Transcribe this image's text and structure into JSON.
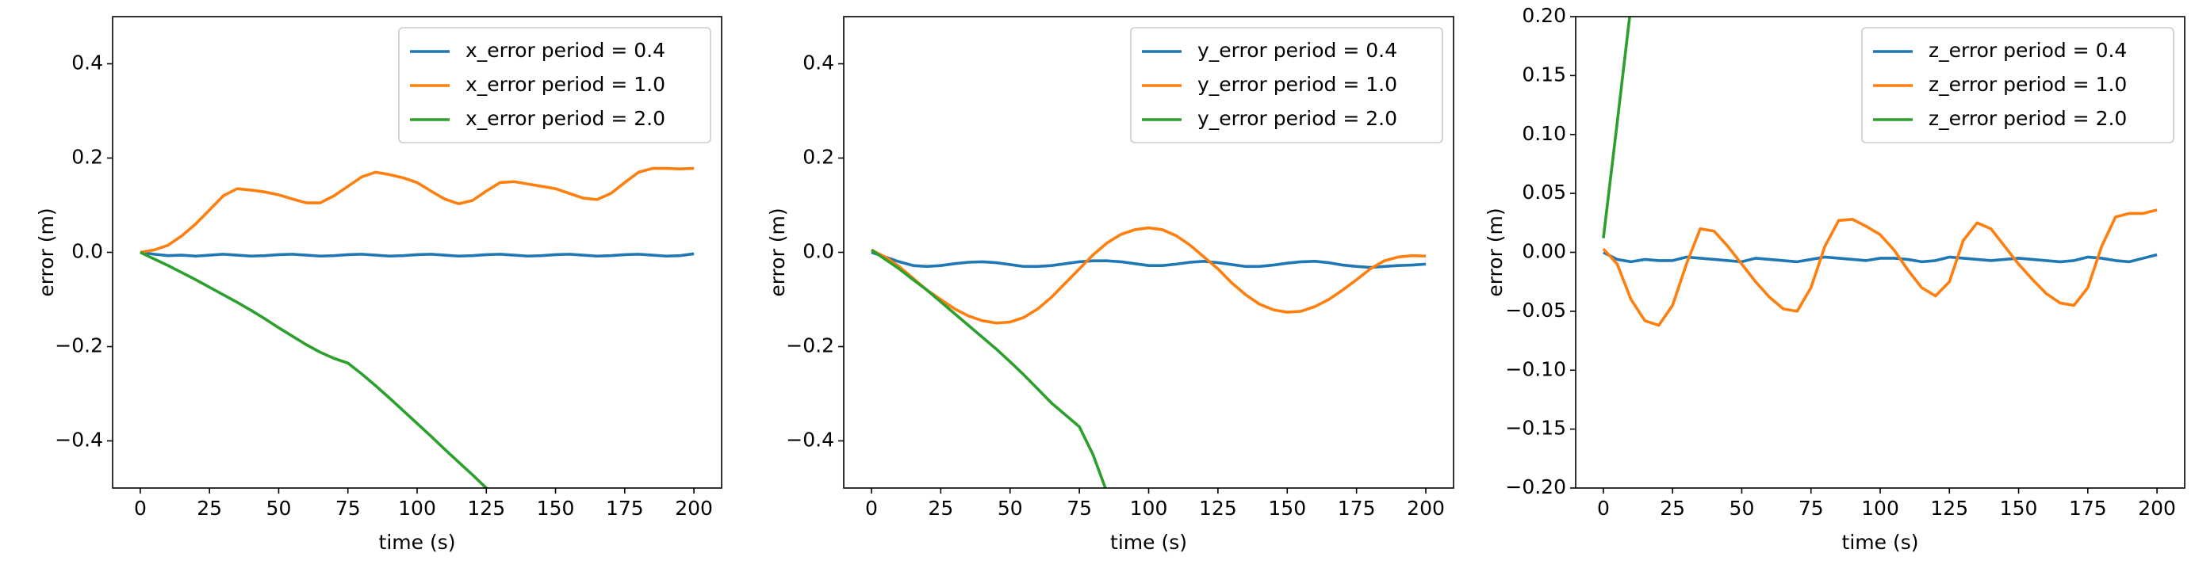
{
  "chart_data": [
    {
      "type": "line",
      "xlabel": "time (s)",
      "ylabel": "error (m)",
      "legend": "upper right",
      "xlim": [
        -10,
        210
      ],
      "ylim": [
        -0.5,
        0.5
      ],
      "xticks": [
        0,
        25,
        50,
        75,
        100,
        125,
        150,
        175,
        200
      ],
      "yticks": [
        {
          "value": -0.4,
          "label": "−0.4"
        },
        {
          "value": -0.2,
          "label": "−0.2"
        },
        {
          "value": 0.0,
          "label": "0.0"
        },
        0.2,
        0.4
      ],
      "x": [
        0,
        5,
        10,
        15,
        20,
        25,
        30,
        35,
        40,
        45,
        50,
        55,
        60,
        65,
        70,
        75,
        80,
        85,
        90,
        95,
        100,
        105,
        110,
        115,
        120,
        125,
        130,
        135,
        140,
        145,
        150,
        155,
        160,
        165,
        170,
        175,
        180,
        185,
        190,
        195,
        200
      ],
      "series": [
        {
          "name": "x_error  period = 0.4",
          "color": "#1f77b4",
          "values": [
            0,
            -0.004,
            -0.007,
            -0.006,
            -0.008,
            -0.006,
            -0.004,
            -0.006,
            -0.008,
            -0.007,
            -0.005,
            -0.004,
            -0.006,
            -0.008,
            -0.007,
            -0.005,
            -0.004,
            -0.006,
            -0.008,
            -0.007,
            -0.005,
            -0.004,
            -0.006,
            -0.008,
            -0.007,
            -0.005,
            -0.004,
            -0.006,
            -0.008,
            -0.007,
            -0.005,
            -0.004,
            -0.006,
            -0.008,
            -0.007,
            -0.005,
            -0.004,
            -0.006,
            -0.008,
            -0.007,
            -0.003
          ]
        },
        {
          "name": "x_error  period = 1.0",
          "color": "#ff7f0e",
          "values": [
            0,
            0.005,
            0.015,
            0.035,
            0.06,
            0.09,
            0.12,
            0.135,
            0.132,
            0.128,
            0.122,
            0.113,
            0.105,
            0.105,
            0.12,
            0.14,
            0.16,
            0.17,
            0.165,
            0.158,
            0.148,
            0.13,
            0.113,
            0.103,
            0.11,
            0.13,
            0.148,
            0.15,
            0.145,
            0.14,
            0.135,
            0.125,
            0.115,
            0.112,
            0.125,
            0.148,
            0.17,
            0.178,
            0.178,
            0.177,
            0.178
          ]
        },
        {
          "name": "x_error  period = 2.0",
          "color": "#2ca02c",
          "values": [
            0,
            -0.014,
            -0.028,
            -0.043,
            -0.058,
            -0.074,
            -0.09,
            -0.106,
            -0.123,
            -0.141,
            -0.16,
            -0.178,
            -0.196,
            -0.212,
            -0.225,
            -0.235,
            -0.258,
            -0.283,
            -0.309,
            -0.336,
            -0.363,
            -0.39,
            -0.418,
            -0.445,
            -0.472,
            -0.5,
            -0.53,
            null,
            null,
            null,
            null,
            null,
            null,
            null,
            null,
            null,
            null,
            null,
            null,
            null,
            null
          ]
        }
      ]
    },
    {
      "type": "line",
      "xlabel": "time (s)",
      "ylabel": "error (m)",
      "legend": "upper right",
      "xlim": [
        -10,
        210
      ],
      "ylim": [
        -0.5,
        0.5
      ],
      "xticks": [
        0,
        25,
        50,
        75,
        100,
        125,
        150,
        175,
        200
      ],
      "yticks": [
        {
          "value": -0.4,
          "label": "−0.4"
        },
        {
          "value": -0.2,
          "label": "−0.2"
        },
        {
          "value": 0.0,
          "label": "0.0"
        },
        0.2,
        0.4
      ],
      "x": [
        0,
        5,
        10,
        15,
        20,
        25,
        30,
        35,
        40,
        45,
        50,
        55,
        60,
        65,
        70,
        75,
        80,
        85,
        90,
        95,
        100,
        105,
        110,
        115,
        120,
        125,
        130,
        135,
        140,
        145,
        150,
        155,
        160,
        165,
        170,
        175,
        180,
        185,
        190,
        195,
        200
      ],
      "series": [
        {
          "name": "y_error  period = 0.4",
          "color": "#1f77b4",
          "values": [
            0,
            -0.01,
            -0.02,
            -0.028,
            -0.03,
            -0.028,
            -0.024,
            -0.021,
            -0.02,
            -0.022,
            -0.026,
            -0.03,
            -0.03,
            -0.028,
            -0.024,
            -0.02,
            -0.018,
            -0.018,
            -0.02,
            -0.024,
            -0.028,
            -0.028,
            -0.025,
            -0.021,
            -0.019,
            -0.022,
            -0.026,
            -0.03,
            -0.03,
            -0.027,
            -0.023,
            -0.02,
            -0.019,
            -0.022,
            -0.027,
            -0.03,
            -0.032,
            -0.03,
            -0.028,
            -0.027,
            -0.025
          ]
        },
        {
          "name": "y_error  period = 1.0",
          "color": "#ff7f0e",
          "values": [
            0.005,
            -0.01,
            -0.03,
            -0.055,
            -0.08,
            -0.1,
            -0.12,
            -0.135,
            -0.145,
            -0.15,
            -0.148,
            -0.138,
            -0.12,
            -0.095,
            -0.065,
            -0.035,
            -0.005,
            0.02,
            0.038,
            0.048,
            0.052,
            0.048,
            0.035,
            0.015,
            -0.01,
            -0.035,
            -0.065,
            -0.09,
            -0.11,
            -0.122,
            -0.127,
            -0.125,
            -0.115,
            -0.1,
            -0.08,
            -0.058,
            -0.035,
            -0.018,
            -0.01,
            -0.007,
            -0.008
          ]
        },
        {
          "name": "y_error  period = 2.0",
          "color": "#2ca02c",
          "values": [
            0.005,
            -0.015,
            -0.035,
            -0.058,
            -0.08,
            -0.105,
            -0.13,
            -0.155,
            -0.18,
            -0.205,
            -0.232,
            -0.26,
            -0.29,
            -0.32,
            -0.345,
            -0.37,
            -0.43,
            -0.51,
            null,
            null,
            null,
            null,
            null,
            null,
            null,
            null,
            null,
            null,
            null,
            null,
            null,
            null,
            null,
            null,
            null,
            null,
            null,
            null,
            null,
            null,
            null
          ]
        }
      ]
    },
    {
      "type": "line",
      "xlabel": "time (s)",
      "ylabel": "error (m)",
      "legend": "upper right",
      "xlim": [
        -10,
        210
      ],
      "ylim": [
        -0.2,
        0.2
      ],
      "xticks": [
        0,
        25,
        50,
        75,
        100,
        125,
        150,
        175,
        200
      ],
      "yticks": [
        {
          "value": -0.2,
          "label": "−0.20"
        },
        {
          "value": -0.15,
          "label": "−0.15"
        },
        {
          "value": -0.1,
          "label": "−0.10"
        },
        {
          "value": -0.05,
          "label": "−0.05"
        },
        {
          "value": 0.0,
          "label": "0.00"
        },
        0.05,
        {
          "value": 0.1,
          "label": "0.10"
        },
        0.15,
        {
          "value": 0.2,
          "label": "0.20"
        }
      ],
      "x": [
        0,
        5,
        10,
        15,
        20,
        25,
        30,
        35,
        40,
        45,
        50,
        55,
        60,
        65,
        70,
        75,
        80,
        85,
        90,
        95,
        100,
        105,
        110,
        115,
        120,
        125,
        130,
        135,
        140,
        145,
        150,
        155,
        160,
        165,
        170,
        175,
        180,
        185,
        190,
        195,
        200
      ],
      "series": [
        {
          "name": "z_error  period = 0.4",
          "color": "#1f77b4",
          "values": [
            0,
            -0.006,
            -0.008,
            -0.006,
            -0.007,
            -0.007,
            -0.004,
            -0.005,
            -0.006,
            -0.007,
            -0.008,
            -0.005,
            -0.006,
            -0.007,
            -0.008,
            -0.006,
            -0.004,
            -0.005,
            -0.006,
            -0.007,
            -0.005,
            -0.005,
            -0.006,
            -0.008,
            -0.007,
            -0.004,
            -0.005,
            -0.006,
            -0.007,
            -0.006,
            -0.005,
            -0.006,
            -0.007,
            -0.008,
            -0.007,
            -0.004,
            -0.005,
            -0.007,
            -0.008,
            -0.005,
            -0.002
          ]
        },
        {
          "name": "z_error  period = 1.0",
          "color": "#ff7f0e",
          "values": [
            0.003,
            -0.01,
            -0.04,
            -0.058,
            -0.062,
            -0.045,
            -0.01,
            0.02,
            0.018,
            0.005,
            -0.01,
            -0.025,
            -0.038,
            -0.048,
            -0.05,
            -0.03,
            0.005,
            0.027,
            0.028,
            0.022,
            0.015,
            0.002,
            -0.015,
            -0.03,
            -0.037,
            -0.025,
            0.01,
            0.025,
            0.02,
            0.005,
            -0.01,
            -0.023,
            -0.035,
            -0.043,
            -0.045,
            -0.03,
            0.005,
            0.03,
            0.033,
            0.033,
            0.036
          ]
        },
        {
          "name": "z_error  period = 2.0",
          "color": "#2ca02c",
          "values": [
            0.012,
            0.11,
            0.21,
            null,
            null,
            null,
            null,
            null,
            null,
            null,
            null,
            null,
            null,
            null,
            null,
            null,
            null,
            null,
            null,
            null,
            null,
            null,
            null,
            null,
            null,
            null,
            null,
            null,
            null,
            null,
            null,
            null,
            null,
            null,
            null,
            null,
            null,
            null,
            null,
            null,
            null
          ]
        }
      ]
    }
  ]
}
